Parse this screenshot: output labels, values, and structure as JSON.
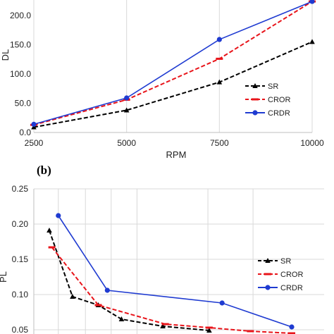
{
  "chart_data": [
    {
      "type": "line",
      "xlabel": "RPM",
      "ylabel": "DL",
      "x": [
        2500,
        5000,
        7500,
        10000
      ],
      "x_ticks": [
        "2500",
        "5000",
        "7500",
        "10000"
      ],
      "y_ticks": [
        "0.0",
        "50.0",
        "100.0",
        "150.0",
        "200.0"
      ],
      "xlim": [
        2500,
        10000
      ],
      "ylim": [
        0,
        225
      ],
      "grid": "vertical",
      "legend": "bottom-right",
      "series": [
        {
          "name": "SR",
          "color": "#000000",
          "style": "dashed",
          "marker": "triangle",
          "values": [
            9,
            38,
            86,
            155
          ]
        },
        {
          "name": "CROR",
          "color": "#e8141a",
          "style": "dashed",
          "marker": "dash",
          "values": [
            13,
            56,
            126,
            224
          ]
        },
        {
          "name": "CRDR",
          "color": "#1f3bd1",
          "style": "solid",
          "marker": "circle",
          "values": [
            14,
            59,
            159,
            224
          ]
        }
      ]
    },
    {
      "type": "line",
      "panel_label": "(b)",
      "ylabel": "PL",
      "x": [
        0.95,
        2,
        3,
        4,
        6.75,
        8.5
      ],
      "y_ticks": [
        "0.05",
        "0.10",
        "0.15",
        "0.20",
        "0.25"
      ],
      "ylim": [
        0.05,
        0.25
      ],
      "grid": "both",
      "legend": "right",
      "series": [
        {
          "name": "SR",
          "color": "#000000",
          "style": "dashed",
          "marker": "triangle",
          "points": [
            [
              0.6,
              0.191
            ],
            [
              1.5,
              0.097
            ],
            [
              2.5,
              0.085
            ],
            [
              3.4,
              0.065
            ],
            [
              5.0,
              0.055
            ],
            [
              6.8,
              0.049
            ]
          ]
        },
        {
          "name": "CROR",
          "color": "#e8141a",
          "style": "dashed",
          "marker": "dash",
          "points": [
            [
              0.7,
              0.167
            ],
            [
              2.5,
              0.085
            ],
            [
              5.1,
              0.058
            ],
            [
              6.8,
              0.053
            ],
            [
              8.4,
              0.048
            ],
            [
              10.0,
              0.045
            ]
          ]
        },
        {
          "name": "CRDR",
          "color": "#1f3bd1",
          "style": "solid",
          "marker": "circle",
          "points": [
            [
              0.95,
              0.212
            ],
            [
              2.85,
              0.106
            ],
            [
              7.3,
              0.088
            ],
            [
              10.0,
              0.054
            ]
          ]
        }
      ]
    }
  ]
}
